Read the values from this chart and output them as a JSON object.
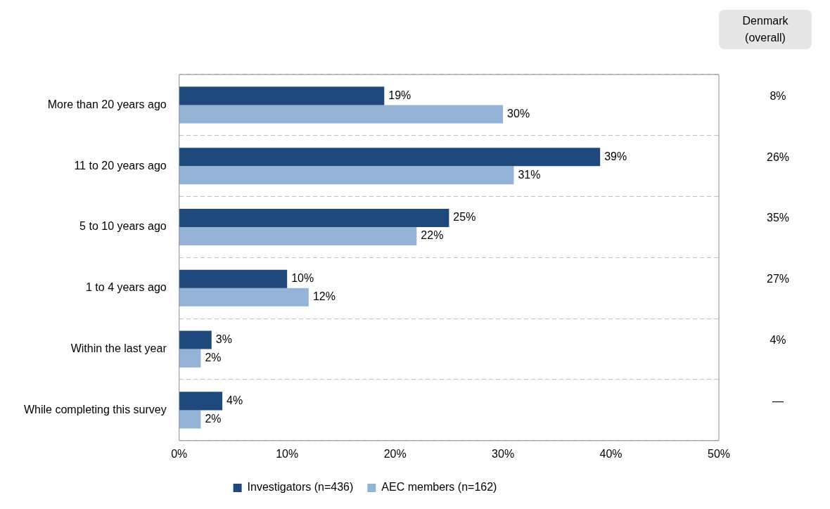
{
  "chart_data": {
    "type": "bar",
    "orientation": "horizontal",
    "categories": [
      "More than 20 years ago",
      "11 to 20 years ago",
      "5 to 10 years ago",
      "1 to 4 years ago",
      "Within the last year",
      "While completing this survey"
    ],
    "series": [
      {
        "name": "Investigators (n=436)",
        "color": "#1f497d",
        "values": [
          19,
          39,
          25,
          10,
          3,
          4
        ],
        "value_labels": [
          "19%",
          "39%",
          "25%",
          "10%",
          "3%",
          "4%"
        ]
      },
      {
        "name": "AEC members (n=162)",
        "color": "#95b3d7",
        "values": [
          30,
          31,
          22,
          12,
          2,
          2
        ],
        "value_labels": [
          "30%",
          "31%",
          "22%",
          "12%",
          "2%",
          "2%"
        ]
      }
    ],
    "xlim": [
      0,
      50
    ],
    "xticks": [
      {
        "value": 0,
        "label": "0%"
      },
      {
        "value": 10,
        "label": "10%"
      },
      {
        "value": 20,
        "label": "20%"
      },
      {
        "value": 30,
        "label": "30%"
      },
      {
        "value": 40,
        "label": "40%"
      },
      {
        "value": 50,
        "label": "50%"
      }
    ],
    "grid": "y",
    "legend": "bottom",
    "annotations": [
      "Denmark\n(overall)",
      "8%",
      "26%",
      "35%",
      "27%",
      "4%",
      "—"
    ]
  }
}
